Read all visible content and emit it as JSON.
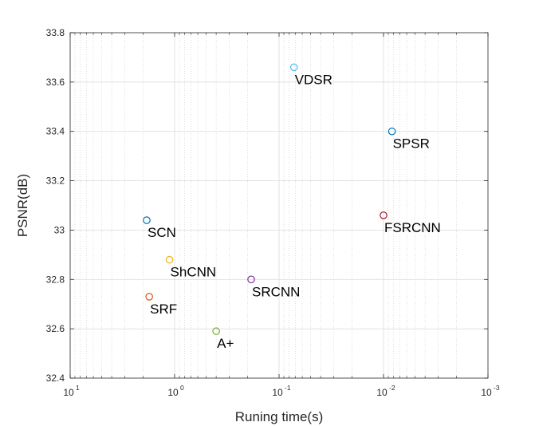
{
  "chart_data": {
    "type": "scatter",
    "title": "",
    "xlabel": "Runing time(s)",
    "ylabel": "PSNR(dB)",
    "x_scale": "log",
    "x_direction": "reversed",
    "xlim": [
      10,
      0.001
    ],
    "ylim": [
      32.4,
      33.8
    ],
    "x_ticks": [
      {
        "value": 10,
        "base": "10",
        "exp": "1"
      },
      {
        "value": 1,
        "base": "10",
        "exp": "0"
      },
      {
        "value": 0.1,
        "base": "10",
        "exp": "-1"
      },
      {
        "value": 0.01,
        "base": "10",
        "exp": "-2"
      },
      {
        "value": 0.001,
        "base": "10",
        "exp": "-3"
      }
    ],
    "y_ticks": [
      {
        "value": 32.4,
        "label": "32.4"
      },
      {
        "value": 32.6,
        "label": "32.6"
      },
      {
        "value": 32.8,
        "label": "32.8"
      },
      {
        "value": 33.0,
        "label": "33"
      },
      {
        "value": 33.2,
        "label": "33.2"
      },
      {
        "value": 33.4,
        "label": "33.4"
      },
      {
        "value": 33.6,
        "label": "33.6"
      },
      {
        "value": 33.8,
        "label": "33.8"
      }
    ],
    "grid": true,
    "minor_grid": true,
    "points": [
      {
        "name": "SCN",
        "x": 1.85,
        "y": 33.04,
        "color": "#0072BD"
      },
      {
        "name": "VDSR",
        "x": 0.072,
        "y": 33.66,
        "color": "#4DBEEE"
      },
      {
        "name": "SPSR",
        "x": 0.0083,
        "y": 33.4,
        "color": "#0072BD"
      },
      {
        "name": "FSRCNN",
        "x": 0.01,
        "y": 33.06,
        "color": "#A2142F"
      },
      {
        "name": "ShCNN",
        "x": 1.12,
        "y": 32.88,
        "color": "#EDB120"
      },
      {
        "name": "SRCNN",
        "x": 0.185,
        "y": 32.8,
        "color": "#7E2F8E"
      },
      {
        "name": "SRF",
        "x": 1.75,
        "y": 32.73,
        "color": "#D95319"
      },
      {
        "name": "A+",
        "x": 0.4,
        "y": 32.59,
        "color": "#77AC30"
      }
    ]
  }
}
